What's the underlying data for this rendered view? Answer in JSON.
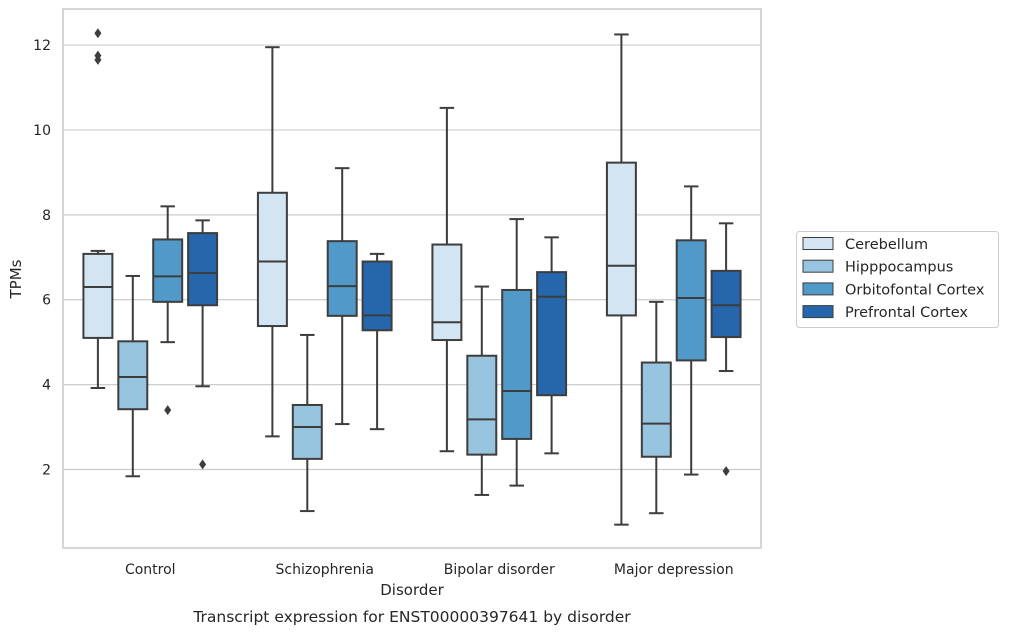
{
  "caption": "Transcript expression for ENST00000397641 by disorder",
  "colors": {
    "Cerebellum": "#d3e4f3",
    "Hipppocampus": "#97c4de",
    "Orbitofontal Cortex": "#5099c9",
    "Prefrontal Cortex": "#2566ad",
    "grid": "#cccccc",
    "frame": "#cccccc",
    "box_line": "#3d3d3d"
  },
  "chart_data": {
    "type": "box",
    "title": "",
    "xlabel": "Disorder",
    "ylabel": "TPMs",
    "ylim": [
      0.15,
      12.85
    ],
    "yticks": [
      2,
      4,
      6,
      8,
      10,
      12
    ],
    "grid": "horizontal",
    "legend_position": "right",
    "categories": [
      "Control",
      "Schizophrenia",
      "Bipolar disorder",
      "Major depression"
    ],
    "series": [
      {
        "name": "Cerebellum",
        "boxes": [
          {
            "whisker_low": 3.92,
            "q1": 5.1,
            "median": 6.3,
            "q3": 7.08,
            "whisker_high": 7.15,
            "outliers": [
              12.28,
              11.75,
              11.65
            ]
          },
          {
            "whisker_low": 2.78,
            "q1": 5.38,
            "median": 6.9,
            "q3": 8.52,
            "whisker_high": 11.95,
            "outliers": []
          },
          {
            "whisker_low": 2.43,
            "q1": 5.05,
            "median": 5.47,
            "q3": 7.3,
            "whisker_high": 10.52,
            "outliers": []
          },
          {
            "whisker_low": 0.7,
            "q1": 5.63,
            "median": 6.8,
            "q3": 9.23,
            "whisker_high": 12.25,
            "outliers": []
          }
        ]
      },
      {
        "name": "Hipppocampus",
        "boxes": [
          {
            "whisker_low": 1.84,
            "q1": 3.42,
            "median": 4.18,
            "q3": 5.02,
            "whisker_high": 6.56,
            "outliers": []
          },
          {
            "whisker_low": 1.02,
            "q1": 2.25,
            "median": 3.0,
            "q3": 3.52,
            "whisker_high": 5.17,
            "outliers": []
          },
          {
            "whisker_low": 1.4,
            "q1": 2.35,
            "median": 3.18,
            "q3": 4.68,
            "whisker_high": 6.31,
            "outliers": []
          },
          {
            "whisker_low": 0.97,
            "q1": 2.3,
            "median": 3.08,
            "q3": 4.52,
            "whisker_high": 5.95,
            "outliers": []
          }
        ]
      },
      {
        "name": "Orbitofontal Cortex",
        "boxes": [
          {
            "whisker_low": 5.0,
            "q1": 5.95,
            "median": 6.55,
            "q3": 7.42,
            "whisker_high": 8.2,
            "outliers": [
              3.4
            ]
          },
          {
            "whisker_low": 3.07,
            "q1": 5.62,
            "median": 6.32,
            "q3": 7.38,
            "whisker_high": 9.1,
            "outliers": []
          },
          {
            "whisker_low": 1.62,
            "q1": 2.72,
            "median": 3.85,
            "q3": 6.23,
            "whisker_high": 7.9,
            "outliers": []
          },
          {
            "whisker_low": 1.88,
            "q1": 4.57,
            "median": 6.04,
            "q3": 7.4,
            "whisker_high": 8.67,
            "outliers": []
          }
        ]
      },
      {
        "name": "Prefrontal Cortex",
        "boxes": [
          {
            "whisker_low": 3.96,
            "q1": 5.87,
            "median": 6.63,
            "q3": 7.57,
            "whisker_high": 7.87,
            "outliers": [
              2.12
            ]
          },
          {
            "whisker_low": 2.95,
            "q1": 5.28,
            "median": 5.63,
            "q3": 6.9,
            "whisker_high": 7.08,
            "outliers": []
          },
          {
            "whisker_low": 2.38,
            "q1": 3.75,
            "median": 6.07,
            "q3": 6.65,
            "whisker_high": 7.47,
            "outliers": []
          },
          {
            "whisker_low": 4.32,
            "q1": 5.12,
            "median": 5.87,
            "q3": 6.68,
            "whisker_high": 7.8,
            "outliers": [
              1.96
            ]
          }
        ]
      }
    ]
  }
}
